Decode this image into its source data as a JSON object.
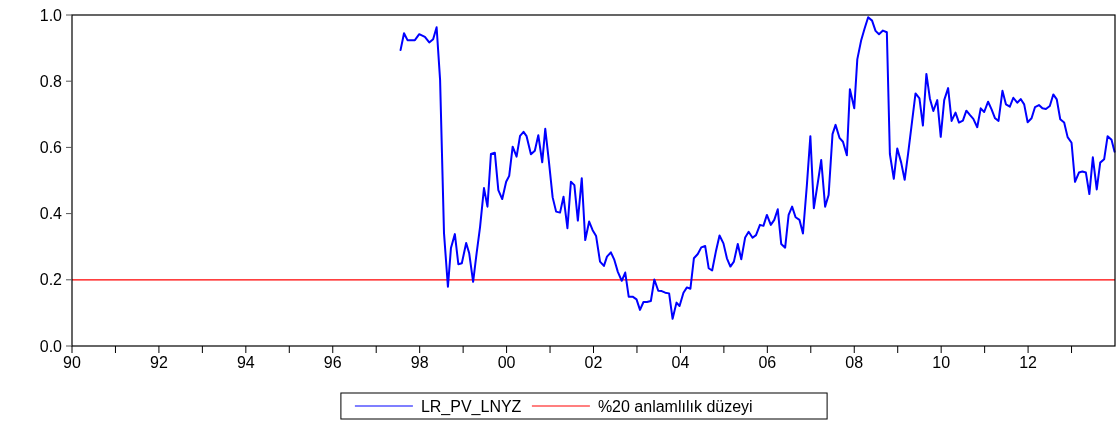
{
  "chart_data": {
    "type": "line",
    "xlim": [
      1990,
      2014
    ],
    "ylim": [
      0,
      1
    ],
    "xticks": [
      {
        "value": 1990,
        "label": "90"
      },
      {
        "value": 1991,
        "label": null
      },
      {
        "value": 1992,
        "label": "92"
      },
      {
        "value": 1993,
        "label": null
      },
      {
        "value": 1994,
        "label": "94"
      },
      {
        "value": 1995,
        "label": null
      },
      {
        "value": 1996,
        "label": "96"
      },
      {
        "value": 1997,
        "label": null
      },
      {
        "value": 1998,
        "label": "98"
      },
      {
        "value": 1999,
        "label": null
      },
      {
        "value": 2000,
        "label": "00"
      },
      {
        "value": 2001,
        "label": null
      },
      {
        "value": 2002,
        "label": "02"
      },
      {
        "value": 2003,
        "label": null
      },
      {
        "value": 2004,
        "label": "04"
      },
      {
        "value": 2005,
        "label": null
      },
      {
        "value": 2006,
        "label": "06"
      },
      {
        "value": 2007,
        "label": null
      },
      {
        "value": 2008,
        "label": "08"
      },
      {
        "value": 2009,
        "label": null
      },
      {
        "value": 2010,
        "label": "10"
      },
      {
        "value": 2011,
        "label": null
      },
      {
        "value": 2012,
        "label": "12"
      },
      {
        "value": 2013,
        "label": null
      }
    ],
    "yticks": [
      {
        "value": 0,
        "label": "0.0"
      },
      {
        "value": 0.2,
        "label": "0.2"
      },
      {
        "value": 0.4,
        "label": "0.4"
      },
      {
        "value": 0.6,
        "label": "0.6"
      },
      {
        "value": 0.8,
        "label": "0.8"
      },
      {
        "value": 1,
        "label": "1.0"
      }
    ],
    "grid": false,
    "legend": "bottom",
    "marker": "none",
    "line_style": "solid",
    "ref_lines": [
      {
        "axis": "y",
        "value": 0.2,
        "label": "%20 anlamlılık düzeyi",
        "color": "#ff0000"
      }
    ],
    "series": [
      {
        "name": "LR_PV_LNYZ",
        "color": "#0000ff",
        "x": [
          1997.56,
          1997.64,
          1997.72,
          1997.89,
          1997.99,
          1998.12,
          1998.22,
          1998.31,
          1998.39,
          1998.47,
          1998.56,
          1998.65,
          1998.72,
          1998.81,
          1998.89,
          1998.97,
          1999.07,
          1999.14,
          1999.23,
          1999.31,
          1999.39,
          1999.48,
          1999.56,
          1999.64,
          1999.73,
          1999.81,
          1999.9,
          1999.99,
          2000.06,
          2000.14,
          2000.23,
          2000.31,
          2000.39,
          2000.46,
          2000.56,
          2000.65,
          2000.73,
          2000.82,
          2000.89,
          2000.97,
          2001.06,
          2001.14,
          2001.23,
          2001.31,
          2001.4,
          2001.48,
          2001.56,
          2001.64,
          2001.73,
          2001.81,
          2001.9,
          2001.98,
          2002.06,
          2002.15,
          2002.24,
          2002.31,
          2002.4,
          2002.48,
          2002.56,
          2002.65,
          2002.73,
          2002.81,
          2002.9,
          2002.99,
          2003.07,
          2003.15,
          2003.23,
          2003.32,
          2003.4,
          2003.49,
          2003.57,
          2003.65,
          2003.74,
          2003.82,
          2003.91,
          2003.98,
          2004.07,
          2004.15,
          2004.23,
          2004.31,
          2004.4,
          2004.48,
          2004.57,
          2004.65,
          2004.73,
          2004.82,
          2004.9,
          2004.99,
          2005.07,
          2005.15,
          2005.23,
          2005.32,
          2005.4,
          2005.49,
          2005.57,
          2005.66,
          2005.74,
          2005.83,
          2005.91,
          2005.99,
          2006.08,
          2006.16,
          2006.24,
          2006.32,
          2006.41,
          2006.49,
          2006.57,
          2006.65,
          2006.74,
          2006.82,
          2006.91,
          2006.99,
          2007.07,
          2007.16,
          2007.24,
          2007.33,
          2007.41,
          2007.5,
          2007.57,
          2007.66,
          2007.74,
          2007.83,
          2007.9,
          2008,
          2008.07,
          2008.16,
          2008.24,
          2008.32,
          2008.41,
          2008.49,
          2008.57,
          2008.66,
          2008.75,
          2008.82,
          2008.91,
          2008.99,
          2009.08,
          2009.16,
          2009.24,
          2009.33,
          2009.41,
          2009.5,
          2009.58,
          2009.66,
          2009.74,
          2009.82,
          2009.91,
          2009.99,
          2010.07,
          2010.16,
          2010.24,
          2010.33,
          2010.41,
          2010.5,
          2010.58,
          2010.66,
          2010.74,
          2010.83,
          2010.91,
          2010.99,
          2011.08,
          2011.16,
          2011.24,
          2011.32,
          2011.41,
          2011.49,
          2011.58,
          2011.66,
          2011.75,
          2011.83,
          2011.91,
          2011.99,
          2012.08,
          2012.16,
          2012.25,
          2012.33,
          2012.41,
          2012.5,
          2012.58,
          2012.66,
          2012.74,
          2012.83,
          2012.91,
          2013,
          2013.08,
          2013.17,
          2013.25,
          2013.33,
          2013.41,
          2013.49,
          2013.58,
          2013.66,
          2013.75,
          2013.83,
          2013.92,
          2013.99
        ],
        "values": [
          0.894,
          0.945,
          0.924,
          0.924,
          0.942,
          0.934,
          0.917,
          0.927,
          0.963,
          0.804,
          0.341,
          0.179,
          0.296,
          0.338,
          0.247,
          0.25,
          0.311,
          0.28,
          0.194,
          0.28,
          0.36,
          0.477,
          0.421,
          0.58,
          0.584,
          0.471,
          0.444,
          0.496,
          0.514,
          0.602,
          0.572,
          0.635,
          0.647,
          0.634,
          0.579,
          0.59,
          0.637,
          0.555,
          0.656,
          0.562,
          0.449,
          0.406,
          0.403,
          0.451,
          0.356,
          0.496,
          0.486,
          0.379,
          0.507,
          0.32,
          0.376,
          0.35,
          0.332,
          0.255,
          0.242,
          0.27,
          0.283,
          0.26,
          0.224,
          0.197,
          0.222,
          0.149,
          0.149,
          0.141,
          0.109,
          0.133,
          0.133,
          0.136,
          0.201,
          0.167,
          0.166,
          0.161,
          0.159,
          0.082,
          0.131,
          0.121,
          0.161,
          0.177,
          0.173,
          0.265,
          0.278,
          0.298,
          0.302,
          0.235,
          0.228,
          0.288,
          0.334,
          0.31,
          0.265,
          0.24,
          0.255,
          0.308,
          0.262,
          0.328,
          0.345,
          0.327,
          0.335,
          0.366,
          0.363,
          0.396,
          0.366,
          0.381,
          0.413,
          0.308,
          0.297,
          0.396,
          0.421,
          0.389,
          0.381,
          0.34,
          0.486,
          0.634,
          0.416,
          0.492,
          0.562,
          0.421,
          0.456,
          0.64,
          0.668,
          0.629,
          0.617,
          0.576,
          0.776,
          0.718,
          0.866,
          0.924,
          0.96,
          0.993,
          0.983,
          0.952,
          0.942,
          0.953,
          0.948,
          0.58,
          0.505,
          0.597,
          0.554,
          0.502,
          0.582,
          0.678,
          0.763,
          0.748,
          0.666,
          0.822,
          0.748,
          0.71,
          0.743,
          0.632,
          0.743,
          0.779,
          0.68,
          0.705,
          0.675,
          0.681,
          0.711,
          0.698,
          0.686,
          0.661,
          0.718,
          0.707,
          0.738,
          0.715,
          0.688,
          0.68,
          0.771,
          0.73,
          0.723,
          0.75,
          0.735,
          0.746,
          0.73,
          0.676,
          0.688,
          0.722,
          0.728,
          0.718,
          0.716,
          0.725,
          0.76,
          0.745,
          0.685,
          0.675,
          0.631,
          0.614,
          0.496,
          0.524,
          0.527,
          0.524,
          0.459,
          0.57,
          0.473,
          0.554,
          0.564,
          0.634,
          0.623,
          0.587
        ]
      }
    ]
  }
}
